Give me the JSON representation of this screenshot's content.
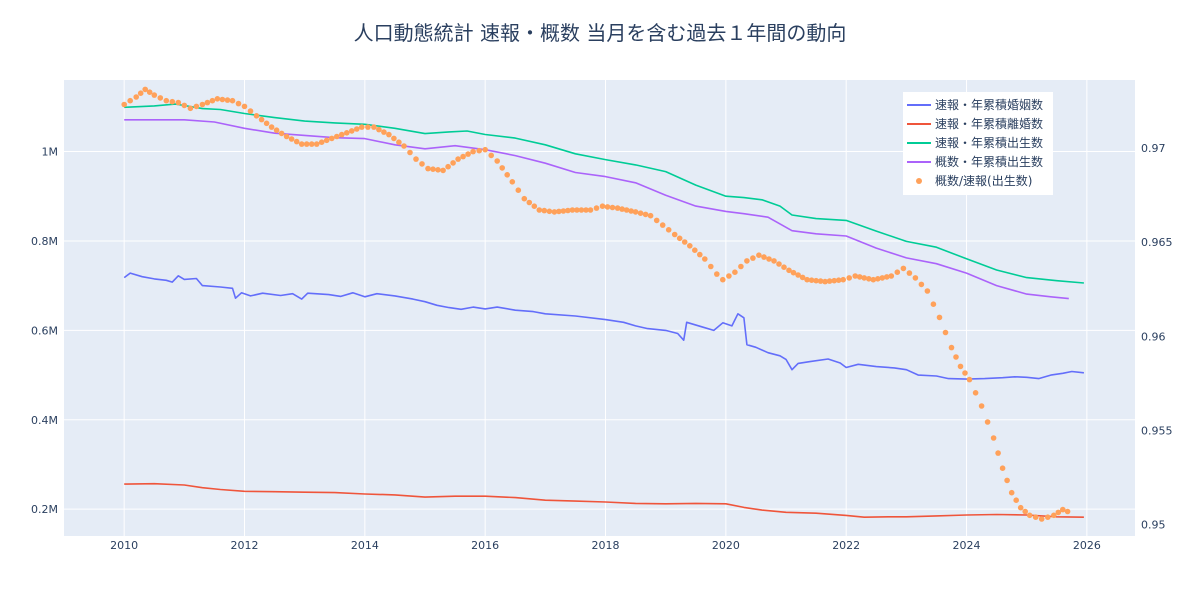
{
  "chart_data": {
    "type": "line",
    "title": "人口動態統計 速報・概数 当月を含む過去１年間の動向",
    "xlabel": "",
    "ylabel": "",
    "xlim": [
      2009,
      2026.8
    ],
    "ylim_left": [
      140000,
      1160000
    ],
    "ylim_right": [
      0.9494,
      0.9736
    ],
    "x_ticks": [
      2010,
      2012,
      2014,
      2016,
      2018,
      2020,
      2022,
      2024,
      2026
    ],
    "x_tick_labels": [
      "2010",
      "2012",
      "2014",
      "2016",
      "2018",
      "2020",
      "2022",
      "2024",
      "2026"
    ],
    "y_left_ticks": [
      200000,
      400000,
      600000,
      800000,
      1000000
    ],
    "y_left_tick_labels": [
      "0.2M",
      "0.4M",
      "0.6M",
      "0.8M",
      "1M"
    ],
    "y_right_ticks": [
      0.95,
      0.955,
      0.96,
      0.965,
      0.97
    ],
    "y_right_tick_labels": [
      "0.95",
      "0.955",
      "0.96",
      "0.965",
      "0.97"
    ],
    "grid": true,
    "legend_position": "top-right",
    "series": [
      {
        "name": "速報・年累積婚姻数",
        "type": "line",
        "axis": "left",
        "color": "#636efa",
        "points": [
          [
            2010.0,
            718000
          ],
          [
            2010.1,
            728000
          ],
          [
            2010.3,
            720000
          ],
          [
            2010.5,
            715000
          ],
          [
            2010.7,
            712000
          ],
          [
            2010.8,
            708000
          ],
          [
            2010.9,
            722000
          ],
          [
            2011.0,
            714000
          ],
          [
            2011.2,
            716000
          ],
          [
            2011.3,
            700000
          ],
          [
            2011.6,
            697000
          ],
          [
            2011.8,
            694000
          ],
          [
            2011.85,
            672000
          ],
          [
            2011.95,
            684000
          ],
          [
            2012.1,
            677000
          ],
          [
            2012.3,
            683000
          ],
          [
            2012.6,
            678000
          ],
          [
            2012.8,
            682000
          ],
          [
            2012.95,
            670000
          ],
          [
            2013.05,
            683000
          ],
          [
            2013.4,
            680000
          ],
          [
            2013.6,
            676000
          ],
          [
            2013.8,
            684000
          ],
          [
            2014.0,
            675000
          ],
          [
            2014.2,
            682000
          ],
          [
            2014.5,
            677000
          ],
          [
            2014.8,
            670000
          ],
          [
            2015.0,
            664000
          ],
          [
            2015.2,
            656000
          ],
          [
            2015.4,
            651000
          ],
          [
            2015.6,
            647000
          ],
          [
            2015.8,
            652000
          ],
          [
            2016.0,
            648000
          ],
          [
            2016.2,
            652000
          ],
          [
            2016.5,
            645000
          ],
          [
            2016.8,
            642000
          ],
          [
            2017.0,
            637000
          ],
          [
            2017.5,
            632000
          ],
          [
            2018.0,
            624000
          ],
          [
            2018.3,
            618000
          ],
          [
            2018.5,
            610000
          ],
          [
            2018.7,
            604000
          ],
          [
            2019.0,
            600000
          ],
          [
            2019.2,
            593000
          ],
          [
            2019.3,
            578000
          ],
          [
            2019.35,
            618000
          ],
          [
            2019.6,
            608000
          ],
          [
            2019.8,
            600000
          ],
          [
            2019.95,
            617000
          ],
          [
            2020.1,
            610000
          ],
          [
            2020.2,
            637000
          ],
          [
            2020.3,
            628000
          ],
          [
            2020.35,
            568000
          ],
          [
            2020.5,
            562000
          ],
          [
            2020.7,
            550000
          ],
          [
            2020.9,
            543000
          ],
          [
            2021.0,
            535000
          ],
          [
            2021.1,
            512000
          ],
          [
            2021.2,
            526000
          ],
          [
            2021.4,
            530000
          ],
          [
            2021.7,
            536000
          ],
          [
            2021.9,
            527000
          ],
          [
            2022.0,
            517000
          ],
          [
            2022.2,
            524000
          ],
          [
            2022.5,
            519000
          ],
          [
            2022.8,
            516000
          ],
          [
            2023.0,
            512000
          ],
          [
            2023.2,
            500000
          ],
          [
            2023.5,
            498000
          ],
          [
            2023.7,
            492000
          ],
          [
            2024.0,
            491000
          ],
          [
            2024.3,
            492000
          ],
          [
            2024.6,
            494000
          ],
          [
            2024.8,
            496000
          ],
          [
            2025.0,
            495000
          ],
          [
            2025.2,
            492000
          ],
          [
            2025.4,
            500000
          ],
          [
            2025.6,
            504000
          ],
          [
            2025.75,
            508000
          ],
          [
            2025.95,
            505000
          ]
        ]
      },
      {
        "name": "速報・年累積離婚数",
        "type": "line",
        "axis": "left",
        "color": "#ef553b",
        "points": [
          [
            2010.0,
            256000
          ],
          [
            2010.5,
            257000
          ],
          [
            2011.0,
            254000
          ],
          [
            2011.3,
            248000
          ],
          [
            2011.6,
            244000
          ],
          [
            2012.0,
            240000
          ],
          [
            2012.5,
            239000
          ],
          [
            2013.0,
            238000
          ],
          [
            2013.5,
            237000
          ],
          [
            2014.0,
            234000
          ],
          [
            2014.5,
            232000
          ],
          [
            2015.0,
            227000
          ],
          [
            2015.5,
            229000
          ],
          [
            2016.0,
            229000
          ],
          [
            2016.5,
            226000
          ],
          [
            2017.0,
            220000
          ],
          [
            2017.5,
            218000
          ],
          [
            2018.0,
            216000
          ],
          [
            2018.5,
            213000
          ],
          [
            2019.0,
            212000
          ],
          [
            2019.5,
            213000
          ],
          [
            2020.0,
            212000
          ],
          [
            2020.3,
            204000
          ],
          [
            2020.6,
            198000
          ],
          [
            2021.0,
            193000
          ],
          [
            2021.5,
            191000
          ],
          [
            2022.0,
            186000
          ],
          [
            2022.3,
            182000
          ],
          [
            2022.7,
            183000
          ],
          [
            2023.0,
            183000
          ],
          [
            2023.5,
            185000
          ],
          [
            2024.0,
            187000
          ],
          [
            2024.5,
            188000
          ],
          [
            2025.0,
            187000
          ],
          [
            2025.5,
            183000
          ],
          [
            2025.95,
            182000
          ]
        ]
      },
      {
        "name": "速報・年累積出生数",
        "type": "line",
        "axis": "left",
        "color": "#00cc96",
        "points": [
          [
            2010.0,
            1099000
          ],
          [
            2010.5,
            1102000
          ],
          [
            2010.85,
            1106000
          ],
          [
            2011.0,
            1103000
          ],
          [
            2011.3,
            1096000
          ],
          [
            2011.6,
            1094000
          ],
          [
            2012.0,
            1085000
          ],
          [
            2012.5,
            1076000
          ],
          [
            2013.0,
            1068000
          ],
          [
            2013.5,
            1064000
          ],
          [
            2014.0,
            1061000
          ],
          [
            2014.5,
            1052000
          ],
          [
            2015.0,
            1040000
          ],
          [
            2015.4,
            1044000
          ],
          [
            2015.7,
            1046000
          ],
          [
            2016.0,
            1038000
          ],
          [
            2016.5,
            1030000
          ],
          [
            2017.0,
            1015000
          ],
          [
            2017.5,
            995000
          ],
          [
            2018.0,
            982000
          ],
          [
            2018.5,
            970000
          ],
          [
            2019.0,
            955000
          ],
          [
            2019.5,
            925000
          ],
          [
            2020.0,
            900000
          ],
          [
            2020.3,
            897000
          ],
          [
            2020.6,
            892000
          ],
          [
            2020.9,
            878000
          ],
          [
            2021.1,
            858000
          ],
          [
            2021.5,
            850000
          ],
          [
            2022.0,
            846000
          ],
          [
            2022.5,
            822000
          ],
          [
            2023.0,
            799000
          ],
          [
            2023.5,
            786000
          ],
          [
            2024.0,
            760000
          ],
          [
            2024.5,
            735000
          ],
          [
            2025.0,
            718000
          ],
          [
            2025.5,
            711000
          ],
          [
            2025.95,
            706000
          ]
        ]
      },
      {
        "name": "概数・年累積出生数",
        "type": "line",
        "axis": "left",
        "color": "#ab63fa",
        "points": [
          [
            2010.0,
            1071000
          ],
          [
            2010.5,
            1071000
          ],
          [
            2011.0,
            1071000
          ],
          [
            2011.5,
            1066000
          ],
          [
            2012.0,
            1052000
          ],
          [
            2012.5,
            1041000
          ],
          [
            2013.0,
            1036000
          ],
          [
            2013.5,
            1031000
          ],
          [
            2014.0,
            1029000
          ],
          [
            2014.5,
            1015000
          ],
          [
            2015.0,
            1006000
          ],
          [
            2015.5,
            1013000
          ],
          [
            2016.0,
            1004000
          ],
          [
            2016.5,
            991000
          ],
          [
            2017.0,
            974000
          ],
          [
            2017.5,
            953000
          ],
          [
            2018.0,
            944000
          ],
          [
            2018.5,
            930000
          ],
          [
            2019.0,
            902000
          ],
          [
            2019.5,
            878000
          ],
          [
            2020.0,
            866000
          ],
          [
            2020.3,
            861000
          ],
          [
            2020.7,
            853000
          ],
          [
            2021.1,
            823000
          ],
          [
            2021.5,
            816000
          ],
          [
            2022.0,
            811000
          ],
          [
            2022.5,
            784000
          ],
          [
            2023.0,
            762000
          ],
          [
            2023.5,
            749000
          ],
          [
            2024.0,
            728000
          ],
          [
            2024.5,
            700000
          ],
          [
            2025.0,
            681000
          ],
          [
            2025.4,
            675000
          ],
          [
            2025.7,
            671000
          ]
        ]
      },
      {
        "name": "概数/速報(出生数)",
        "type": "scatter",
        "axis": "right",
        "color": "#ffa15a",
        "points": [
          [
            2010.0,
            0.9723
          ],
          [
            2010.2,
            0.9727
          ],
          [
            2010.35,
            0.9731
          ],
          [
            2010.5,
            0.9728
          ],
          [
            2010.7,
            0.9725
          ],
          [
            2010.9,
            0.9724
          ],
          [
            2011.1,
            0.9721
          ],
          [
            2011.3,
            0.9723
          ],
          [
            2011.55,
            0.9726
          ],
          [
            2011.8,
            0.9725
          ],
          [
            2012.0,
            0.9722
          ],
          [
            2012.2,
            0.9717
          ],
          [
            2012.45,
            0.9711
          ],
          [
            2012.7,
            0.9706
          ],
          [
            2012.95,
            0.9702
          ],
          [
            2013.2,
            0.9702
          ],
          [
            2013.45,
            0.9705
          ],
          [
            2013.7,
            0.9708
          ],
          [
            2013.95,
            0.9711
          ],
          [
            2014.15,
            0.9711
          ],
          [
            2014.4,
            0.9707
          ],
          [
            2014.65,
            0.9701
          ],
          [
            2014.85,
            0.9694
          ],
          [
            2015.05,
            0.9689
          ],
          [
            2015.3,
            0.9688
          ],
          [
            2015.55,
            0.9694
          ],
          [
            2015.8,
            0.9698
          ],
          [
            2016.0,
            0.9699
          ],
          [
            2016.2,
            0.9693
          ],
          [
            2016.45,
            0.9682
          ],
          [
            2016.65,
            0.9673
          ],
          [
            2016.9,
            0.9667
          ],
          [
            2017.15,
            0.9666
          ],
          [
            2017.45,
            0.9667
          ],
          [
            2017.75,
            0.9667
          ],
          [
            2017.95,
            0.9669
          ],
          [
            2018.2,
            0.9668
          ],
          [
            2018.5,
            0.9666
          ],
          [
            2018.75,
            0.9664
          ],
          [
            2018.95,
            0.9659
          ],
          [
            2019.15,
            0.9654
          ],
          [
            2019.4,
            0.9648
          ],
          [
            2019.65,
            0.9641
          ],
          [
            2019.85,
            0.9633
          ],
          [
            2019.95,
            0.963
          ],
          [
            2020.15,
            0.9634
          ],
          [
            2020.35,
            0.964
          ],
          [
            2020.55,
            0.9643
          ],
          [
            2020.8,
            0.964
          ],
          [
            2021.05,
            0.9635
          ],
          [
            2021.35,
            0.963
          ],
          [
            2021.65,
            0.9629
          ],
          [
            2021.95,
            0.963
          ],
          [
            2022.15,
            0.9632
          ],
          [
            2022.45,
            0.963
          ],
          [
            2022.75,
            0.9632
          ],
          [
            2022.95,
            0.9636
          ],
          [
            2023.15,
            0.9631
          ],
          [
            2023.35,
            0.9624
          ],
          [
            2023.55,
            0.961
          ],
          [
            2023.75,
            0.9594
          ],
          [
            2023.9,
            0.9584
          ],
          [
            2024.05,
            0.9577
          ],
          [
            2024.25,
            0.9563
          ],
          [
            2024.45,
            0.9546
          ],
          [
            2024.6,
            0.953
          ],
          [
            2024.75,
            0.9517
          ],
          [
            2024.9,
            0.9509
          ],
          [
            2025.05,
            0.9505
          ],
          [
            2025.25,
            0.9503
          ],
          [
            2025.45,
            0.9505
          ],
          [
            2025.6,
            0.9508
          ],
          [
            2025.68,
            0.9507
          ]
        ]
      }
    ]
  }
}
